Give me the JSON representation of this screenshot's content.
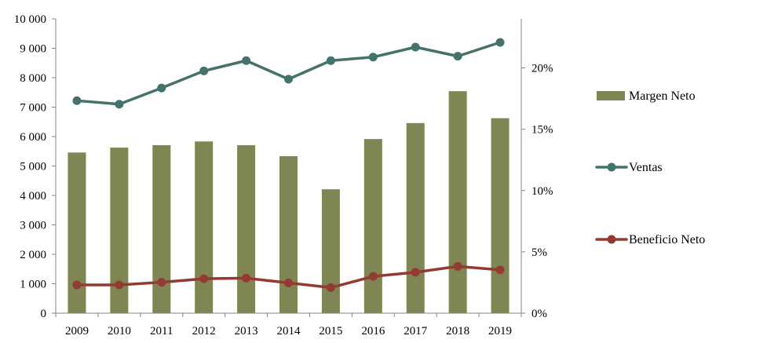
{
  "chart_data": {
    "type": "bar+line",
    "categories": [
      "2009",
      "2010",
      "2011",
      "2012",
      "2013",
      "2014",
      "2015",
      "2016",
      "2017",
      "2018",
      "2019"
    ],
    "series": [
      {
        "name": "Margen Neto",
        "kind": "bar",
        "axis": "right",
        "color": "#7f8653",
        "values": [
          0.131,
          0.135,
          0.137,
          0.14,
          0.137,
          0.128,
          0.101,
          0.142,
          0.155,
          0.181,
          0.159
        ]
      },
      {
        "name": "Ventas",
        "kind": "line",
        "axis": "left",
        "color": "#44736c",
        "values": [
          7220,
          7100,
          7650,
          8230,
          8580,
          7950,
          8580,
          8700,
          9040,
          8730,
          9200
        ]
      },
      {
        "name": "Beneficio Neto",
        "kind": "line",
        "axis": "left",
        "color": "#933a34",
        "values": [
          960,
          960,
          1050,
          1170,
          1190,
          1030,
          870,
          1250,
          1390,
          1590,
          1470
        ]
      }
    ],
    "left_axis": {
      "ylim": [
        0,
        10000
      ],
      "ticks": [
        0,
        1000,
        2000,
        3000,
        4000,
        5000,
        6000,
        7000,
        8000,
        9000,
        10000
      ],
      "tick_labels": [
        "0",
        "1 000",
        "2 000",
        "3 000",
        "4 000",
        "5 000",
        "6 000",
        "7 000",
        "8 000",
        "9 000",
        "10 000"
      ]
    },
    "right_axis": {
      "ylim": [
        0,
        0.24
      ],
      "ticks": [
        0,
        0.05,
        0.1,
        0.15,
        0.2
      ],
      "tick_labels": [
        "0%",
        "5%",
        "10%",
        "15%",
        "20%"
      ]
    },
    "legend": {
      "placement": "right",
      "entries": [
        "Margen Neto",
        "Ventas",
        "Beneficio Neto"
      ]
    },
    "title": "",
    "xlabel": "",
    "ylabel": "",
    "grid": false
  }
}
